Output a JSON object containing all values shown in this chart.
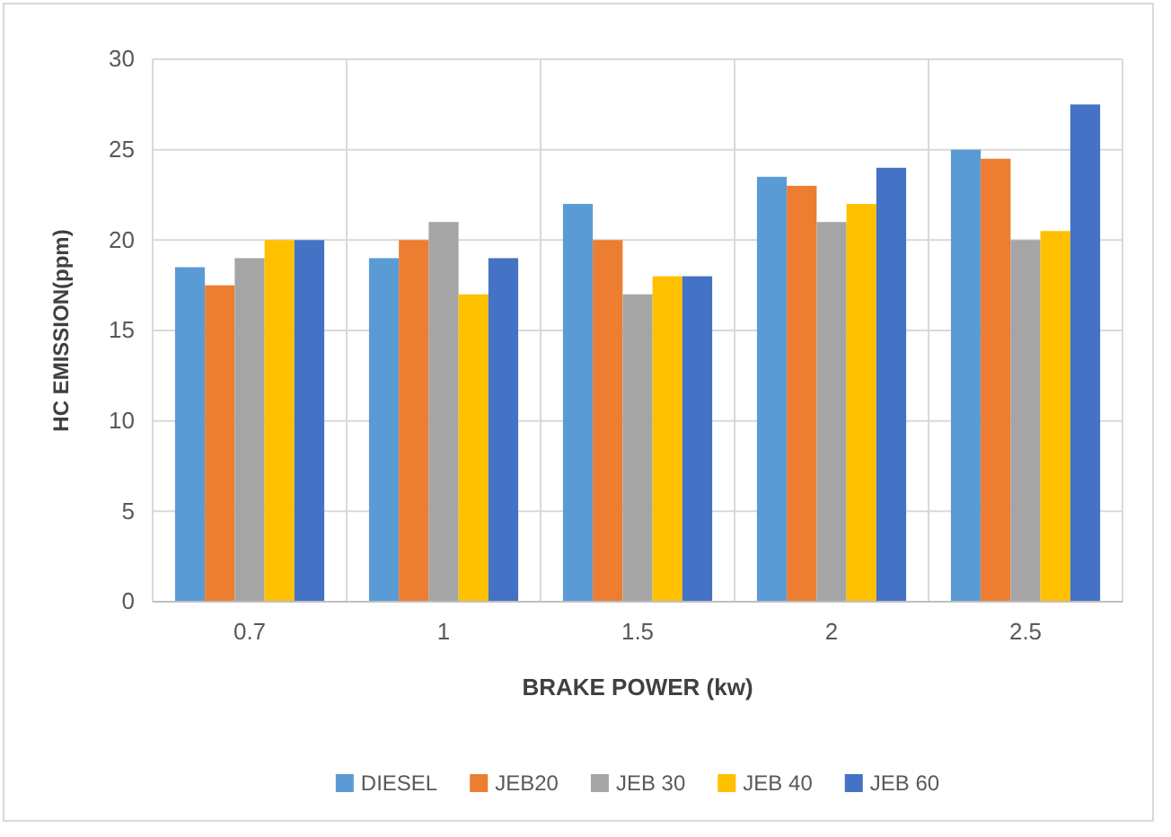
{
  "chart_data": {
    "type": "bar",
    "xlabel": "BRAKE POWER (kw)",
    "ylabel": "HC EMISSION(ppm)",
    "categories": [
      "0.7",
      "1",
      "1.5",
      "2",
      "2.5"
    ],
    "series": [
      {
        "name": "DIESEL",
        "color": "#5b9bd5",
        "values": [
          18.5,
          19,
          22,
          23.5,
          25
        ]
      },
      {
        "name": "JEB20",
        "color": "#ed7d31",
        "values": [
          17.5,
          20,
          20,
          23,
          24.5
        ]
      },
      {
        "name": "JEB 30",
        "color": "#a5a5a5",
        "values": [
          19,
          21,
          17,
          21,
          20
        ]
      },
      {
        "name": "JEB 40",
        "color": "#ffc000",
        "values": [
          20,
          17,
          18,
          22,
          20.5
        ]
      },
      {
        "name": "JEB 60",
        "color": "#4472c4",
        "values": [
          20,
          19,
          18,
          24,
          27.5
        ]
      }
    ],
    "ylim": [
      0,
      30
    ],
    "yticks": [
      0,
      5,
      10,
      15,
      20,
      25,
      30
    ],
    "grid": true,
    "legend": "bottom"
  }
}
